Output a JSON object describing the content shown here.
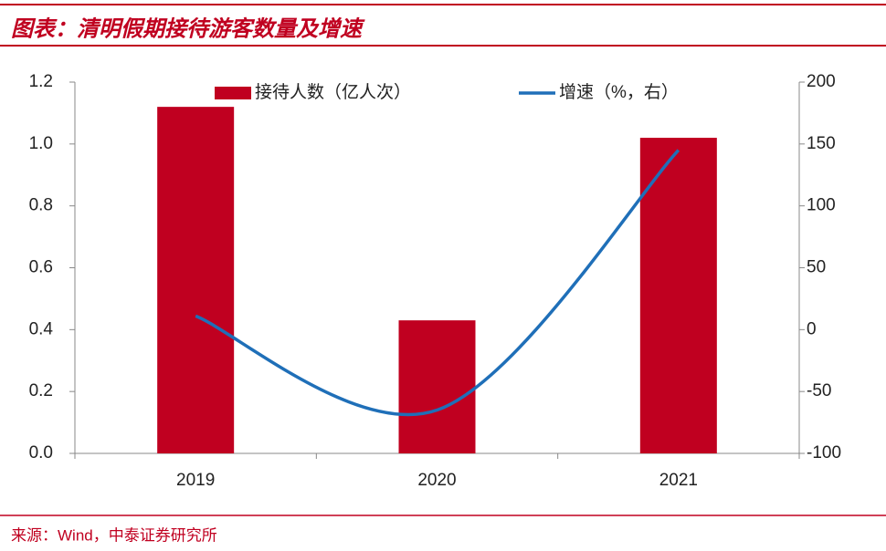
{
  "header": {
    "title": "图表：清明假期接待游客数量及增速"
  },
  "chart_data": {
    "type": "bar_line",
    "categories": [
      "2019",
      "2020",
      "2021"
    ],
    "series": [
      {
        "name": "接待人数（亿人次）",
        "type": "bar",
        "color": "#c00020",
        "values": [
          1.12,
          0.43,
          1.02
        ]
      },
      {
        "name": "增速（%，右）",
        "type": "line",
        "color": "#1f6fb8",
        "axis": "y2",
        "values": [
          11,
          -65,
          145
        ]
      }
    ],
    "ylim": [
      0,
      1.2
    ],
    "yticks": [
      {
        "value": 0,
        "label": "0.0"
      },
      0.2,
      0.4,
      0.6,
      0.8,
      {
        "value": 1,
        "label": "1.0"
      },
      1.2
    ],
    "y2lim": [
      -100,
      200
    ],
    "y2ticks": [
      -100,
      -50,
      0,
      50,
      100,
      150,
      200
    ],
    "grid": false
  },
  "footer": {
    "source": "来源：Wind，中泰证券研究所"
  }
}
